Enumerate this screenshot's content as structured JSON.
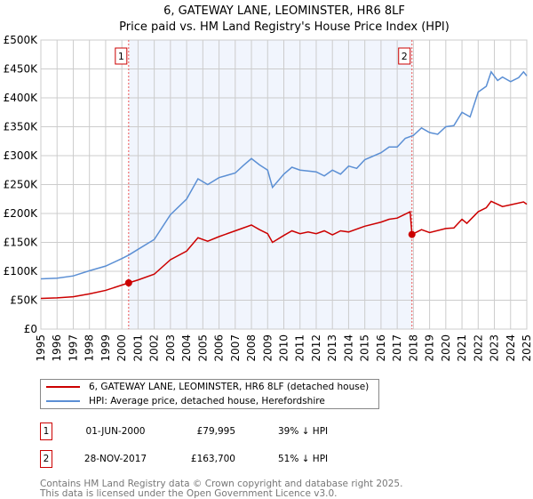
{
  "chart_data": {
    "type": "line",
    "title": "6, GATEWAY LANE, LEOMINSTER, HR6 8LF",
    "subtitle": "Price paid vs. HM Land Registry's House Price Index (HPI)",
    "xlabel": "",
    "ylabel": "",
    "xlim": [
      1995,
      2025
    ],
    "ylim": [
      0,
      500000
    ],
    "x_ticks": [
      "1995",
      "1996",
      "1997",
      "1998",
      "1999",
      "2000",
      "2001",
      "2002",
      "2003",
      "2004",
      "2005",
      "2006",
      "2007",
      "2008",
      "2009",
      "2010",
      "2011",
      "2012",
      "2013",
      "2014",
      "2015",
      "2016",
      "2017",
      "2018",
      "2019",
      "2020",
      "2021",
      "2022",
      "2023",
      "2024",
      "2025"
    ],
    "y_ticks": [
      {
        "v": 0,
        "label": "£0"
      },
      {
        "v": 50000,
        "label": "£50K"
      },
      {
        "v": 100000,
        "label": "£100K"
      },
      {
        "v": 150000,
        "label": "£150K"
      },
      {
        "v": 200000,
        "label": "£200K"
      },
      {
        "v": 250000,
        "label": "£250K"
      },
      {
        "v": 300000,
        "label": "£300K"
      },
      {
        "v": 350000,
        "label": "£350K"
      },
      {
        "v": 400000,
        "label": "£400K"
      },
      {
        "v": 450000,
        "label": "£450K"
      },
      {
        "v": 500000,
        "label": "£500K"
      }
    ],
    "grid": true,
    "legend_placement": "below",
    "shaded_range": [
      2000.42,
      2017.91
    ],
    "series": [
      {
        "name": "6, GATEWAY LANE, LEOMINSTER, HR6 8LF (detached house)",
        "color": "#cc0000",
        "points": [
          [
            1995,
            53000
          ],
          [
            1996,
            54000
          ],
          [
            1997,
            56000
          ],
          [
            1998,
            61000
          ],
          [
            1999,
            67000
          ],
          [
            2000.42,
            79995
          ],
          [
            2001,
            85000
          ],
          [
            2002,
            95000
          ],
          [
            2003,
            120000
          ],
          [
            2004,
            135000
          ],
          [
            2004.7,
            158000
          ],
          [
            2005.3,
            152000
          ],
          [
            2006,
            160000
          ],
          [
            2007,
            170000
          ],
          [
            2007.5,
            175000
          ],
          [
            2008,
            180000
          ],
          [
            2008.5,
            172000
          ],
          [
            2009,
            165000
          ],
          [
            2009.3,
            150000
          ],
          [
            2010,
            162000
          ],
          [
            2010.5,
            170000
          ],
          [
            2011,
            165000
          ],
          [
            2011.5,
            168000
          ],
          [
            2012,
            165000
          ],
          [
            2012.5,
            170000
          ],
          [
            2013,
            163000
          ],
          [
            2013.5,
            170000
          ],
          [
            2014,
            168000
          ],
          [
            2015,
            178000
          ],
          [
            2016,
            185000
          ],
          [
            2016.5,
            190000
          ],
          [
            2017,
            192000
          ],
          [
            2017.8,
            203000
          ],
          [
            2017.91,
            163700
          ],
          [
            2018.5,
            172000
          ],
          [
            2019,
            167000
          ],
          [
            2020,
            174000
          ],
          [
            2020.5,
            175000
          ],
          [
            2021,
            190000
          ],
          [
            2021.3,
            183000
          ],
          [
            2022,
            203000
          ],
          [
            2022.5,
            210000
          ],
          [
            2022.8,
            221000
          ],
          [
            2023.5,
            212000
          ],
          [
            2024,
            215000
          ],
          [
            2024.8,
            220000
          ],
          [
            2025,
            216000
          ]
        ]
      },
      {
        "name": "HPI: Average price, detached house, Herefordshire",
        "color": "#5b8fd4",
        "points": [
          [
            1995,
            87000
          ],
          [
            1996,
            88000
          ],
          [
            1997,
            92000
          ],
          [
            1998,
            101000
          ],
          [
            1999,
            109000
          ],
          [
            2000,
            122000
          ],
          [
            2000.42,
            128000
          ],
          [
            2001,
            138000
          ],
          [
            2002,
            155000
          ],
          [
            2003,
            198000
          ],
          [
            2004,
            225000
          ],
          [
            2004.7,
            260000
          ],
          [
            2005.3,
            250000
          ],
          [
            2006,
            262000
          ],
          [
            2007,
            270000
          ],
          [
            2007.5,
            283000
          ],
          [
            2008,
            295000
          ],
          [
            2008.5,
            284000
          ],
          [
            2009,
            275000
          ],
          [
            2009.3,
            245000
          ],
          [
            2010,
            268000
          ],
          [
            2010.5,
            280000
          ],
          [
            2011,
            275000
          ],
          [
            2012,
            272000
          ],
          [
            2012.5,
            265000
          ],
          [
            2013,
            275000
          ],
          [
            2013.5,
            268000
          ],
          [
            2014,
            282000
          ],
          [
            2014.5,
            278000
          ],
          [
            2015,
            293000
          ],
          [
            2016,
            305000
          ],
          [
            2016.5,
            315000
          ],
          [
            2017,
            315000
          ],
          [
            2017.5,
            330000
          ],
          [
            2018,
            335000
          ],
          [
            2018.5,
            348000
          ],
          [
            2019,
            340000
          ],
          [
            2019.5,
            337000
          ],
          [
            2020,
            350000
          ],
          [
            2020.5,
            352000
          ],
          [
            2021,
            375000
          ],
          [
            2021.5,
            367000
          ],
          [
            2022,
            410000
          ],
          [
            2022.5,
            420000
          ],
          [
            2022.8,
            445000
          ],
          [
            2023.2,
            430000
          ],
          [
            2023.5,
            436000
          ],
          [
            2024,
            428000
          ],
          [
            2024.5,
            435000
          ],
          [
            2024.8,
            445000
          ],
          [
            2025,
            438000
          ]
        ]
      }
    ],
    "annotations": [
      {
        "label": "1",
        "x": 2000.42,
        "value": 79995
      },
      {
        "label": "2",
        "x": 2017.91,
        "value": 163700
      }
    ]
  },
  "legend": {
    "property": "6, GATEWAY LANE, LEOMINSTER, HR6 8LF (detached house)",
    "hpi": "HPI: Average price, detached house, Herefordshire"
  },
  "sales": [
    {
      "num": "1",
      "date": "01-JUN-2000",
      "price": "£79,995",
      "hpi": "39% ↓ HPI"
    },
    {
      "num": "2",
      "date": "28-NOV-2017",
      "price": "£163,700",
      "hpi": "51% ↓ HPI"
    }
  ],
  "footer": {
    "line1": "Contains HM Land Registry data © Crown copyright and database right 2025.",
    "line2": "This data is licensed under the Open Government Licence v3.0."
  }
}
